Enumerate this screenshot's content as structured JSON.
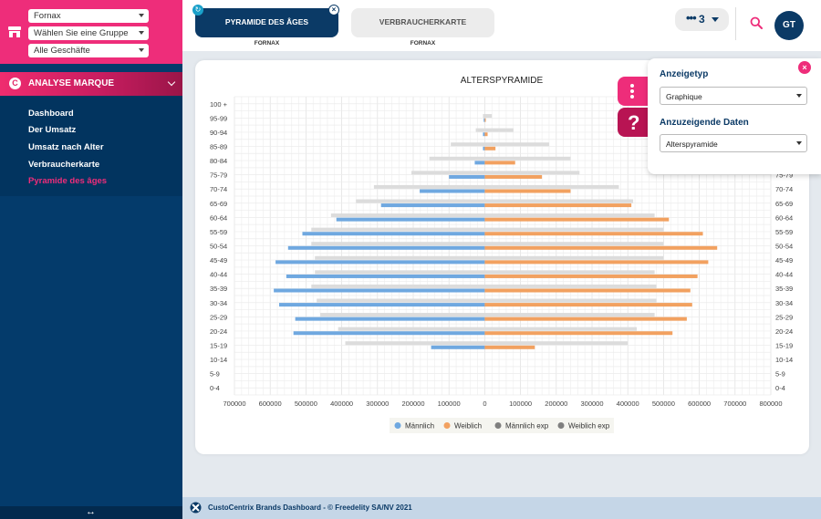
{
  "sidebar": {
    "selects": [
      {
        "value": "Fornax"
      },
      {
        "value": "Wählen Sie eine Gruppe"
      },
      {
        "value": "Alle Geschäfte"
      }
    ],
    "section_label": "ANALYSE MARQUE",
    "nav_items": [
      {
        "label": "Dashboard",
        "active": false
      },
      {
        "label": "Der Umsatz",
        "active": false
      },
      {
        "label": "Umsatz nach Alter",
        "active": false
      },
      {
        "label": "Verbraucherkarte",
        "active": false
      },
      {
        "label": "Pyramide des âges",
        "active": true
      }
    ],
    "bottom_arrows": "↔"
  },
  "header": {
    "tabs": [
      {
        "label": "PYRAMIDE DES ÂGES",
        "sub": "FORNAX"
      },
      {
        "label": "VERBRAUCHERKARTE",
        "sub": "FORNAX"
      }
    ],
    "more_count": "3",
    "avatar_initials": "GT"
  },
  "settings": {
    "display_type_label": "Anzeigetyp",
    "display_type_value": "Graphique",
    "data_label": "Anzuzeigende Daten",
    "data_value": "Alterspyramide"
  },
  "footer": {
    "text": "CustoCentrix Brands Dashboard - © Freedelity SA/NV 2021"
  },
  "colors": {
    "male": "#6fa8e0",
    "female": "#f2a160",
    "exp": "#dcdcdc",
    "accent": "#ee2d7a",
    "navy": "#0b3a66"
  },
  "chart_data": {
    "type": "bar",
    "orientation": "horizontal-pyramid",
    "title": "ALTERSPYRAMIDE",
    "categories": [
      "100 +",
      "95-99",
      "90-94",
      "85-89",
      "80-84",
      "75-79",
      "70-74",
      "65-69",
      "60-64",
      "55-59",
      "50-54",
      "45-49",
      "40-44",
      "35-39",
      "30-34",
      "25-29",
      "20-24",
      "15-19",
      "10-14",
      "5-9",
      "0-4"
    ],
    "x_ticks": [
      "700000",
      "600000",
      "500000",
      "400000",
      "300000",
      "200000",
      "100000",
      "0",
      "100000",
      "200000",
      "300000",
      "400000",
      "500000",
      "600000",
      "700000",
      "800000"
    ],
    "xlim": [
      -700000,
      800000
    ],
    "series": [
      {
        "name": "Männlich",
        "values": [
          0,
          3000,
          5000,
          5000,
          28000,
          100000,
          182000,
          290000,
          415000,
          510000,
          550000,
          585000,
          555000,
          590000,
          575000,
          530000,
          535000,
          150000,
          0,
          0,
          0
        ]
      },
      {
        "name": "Weiblich",
        "values": [
          0,
          3000,
          8000,
          30000,
          85000,
          160000,
          240000,
          410000,
          515000,
          610000,
          650000,
          625000,
          595000,
          575000,
          580000,
          565000,
          525000,
          140000,
          0,
          0,
          0
        ]
      },
      {
        "name": "Männlich exp",
        "values": [
          0,
          5000,
          25000,
          95000,
          155000,
          205000,
          310000,
          360000,
          430000,
          485000,
          485000,
          475000,
          475000,
          485000,
          470000,
          460000,
          410000,
          390000,
          0,
          0,
          0
        ]
      },
      {
        "name": "Weiblich exp",
        "values": [
          0,
          20000,
          80000,
          180000,
          240000,
          265000,
          375000,
          415000,
          475000,
          500000,
          500000,
          500000,
          475000,
          480000,
          480000,
          475000,
          425000,
          400000,
          0,
          0,
          0
        ]
      }
    ],
    "legend": [
      {
        "name": "Männlich",
        "color": "#6fa8e0"
      },
      {
        "name": "Weiblich",
        "color": "#f2a160"
      },
      {
        "name": "Männlich exp",
        "color": "#7f7f7f"
      },
      {
        "name": "Weiblich exp",
        "color": "#7f7f7f"
      }
    ],
    "grid": true,
    "legend_position": "bottom"
  }
}
